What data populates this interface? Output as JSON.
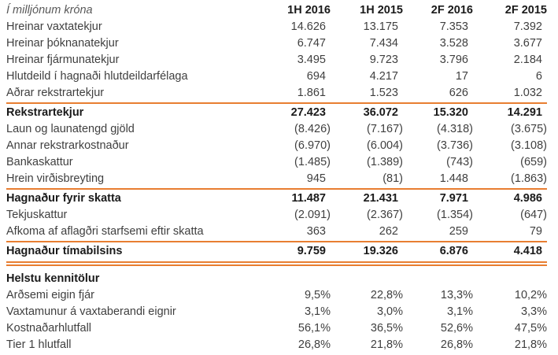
{
  "colors": {
    "accent_orange": "#e87e31",
    "text_normal": "#3f3f3f",
    "text_bold": "#1a1a1a",
    "text_unit": "#595959"
  },
  "table": {
    "unit_label": "Í milljónum króna",
    "columns": [
      "1H 2016",
      "1H 2015",
      "2F 2016",
      "2F 2015"
    ],
    "rows": [
      {
        "label": "Hreinar vaxtatekjur",
        "values": [
          "14.626",
          "13.175",
          "7.353",
          "7.392"
        ],
        "bold": false,
        "divider_after": "none"
      },
      {
        "label": "Hreinar þóknanatekjur",
        "values": [
          "6.747",
          "7.434",
          "3.528",
          "3.677"
        ],
        "bold": false,
        "divider_after": "none"
      },
      {
        "label": "Hreinar fjármunatekjur",
        "values": [
          "3.495",
          "9.723",
          "3.796",
          "2.184"
        ],
        "bold": false,
        "divider_after": "none"
      },
      {
        "label": "Hlutdeild í hagnaði hlutdeildarfélaga",
        "values": [
          "694",
          "4.217",
          "17",
          "6"
        ],
        "bold": false,
        "divider_after": "none"
      },
      {
        "label": "Aðrar rekstrartekjur",
        "values": [
          "1.861",
          "1.523",
          "626",
          "1.032"
        ],
        "bold": false,
        "divider_after": "single"
      },
      {
        "label": "Rekstrartekjur",
        "values": [
          "27.423",
          "36.072",
          "15.320",
          "14.291"
        ],
        "bold": true,
        "divider_after": "none"
      },
      {
        "label": "Laun og launatengd gjöld",
        "values": [
          "(8.426)",
          "(7.167)",
          "(4.318)",
          "(3.675)"
        ],
        "bold": false,
        "divider_after": "none"
      },
      {
        "label": "Annar rekstrarkostnaður",
        "values": [
          "(6.970)",
          "(6.004)",
          "(3.736)",
          "(3.108)"
        ],
        "bold": false,
        "divider_after": "none"
      },
      {
        "label": "Bankaskattur",
        "values": [
          "(1.485)",
          "(1.389)",
          "(743)",
          "(659)"
        ],
        "bold": false,
        "divider_after": "none"
      },
      {
        "label": "Hrein virðisbreyting",
        "values": [
          "945",
          "(81)",
          "1.448",
          "(1.863)"
        ],
        "bold": false,
        "divider_after": "single"
      },
      {
        "label": "Hagnaður fyrir skatta",
        "values": [
          "11.487",
          "21.431",
          "7.971",
          "4.986"
        ],
        "bold": true,
        "divider_after": "none"
      },
      {
        "label": "Tekjuskattur",
        "values": [
          "(2.091)",
          "(2.367)",
          "(1.354)",
          "(647)"
        ],
        "bold": false,
        "divider_after": "none"
      },
      {
        "label": "Afkoma af aflagðri starfsemi eftir skatta",
        "values": [
          "363",
          "262",
          "259",
          "79"
        ],
        "bold": false,
        "divider_after": "single"
      },
      {
        "label": "Hagnaður tímabilsins",
        "values": [
          "9.759",
          "19.326",
          "6.876",
          "4.418"
        ],
        "bold": true,
        "divider_after": "double"
      },
      {
        "label": "Helstu kennitölur",
        "values": [
          "",
          "",
          "",
          ""
        ],
        "bold": true,
        "divider_after": "none",
        "gap_before": true
      },
      {
        "label": "Arðsemi eigin fjár",
        "values": [
          "9,5%",
          "22,8%",
          "13,3%",
          "10,2%"
        ],
        "bold": false,
        "divider_after": "none"
      },
      {
        "label": "Vaxtamunur á vaxtaberandi eignir",
        "values": [
          "3,1%",
          "3,0%",
          "3,1%",
          "3,3%"
        ],
        "bold": false,
        "divider_after": "none"
      },
      {
        "label": "Kostnaðarhlutfall",
        "values": [
          "56,1%",
          "36,5%",
          "52,6%",
          "47,5%"
        ],
        "bold": false,
        "divider_after": "none"
      },
      {
        "label": "Tier 1 hlutfall",
        "values": [
          "26,8%",
          "21,8%",
          "26,8%",
          "21,8%"
        ],
        "bold": false,
        "divider_after": "none"
      }
    ]
  }
}
